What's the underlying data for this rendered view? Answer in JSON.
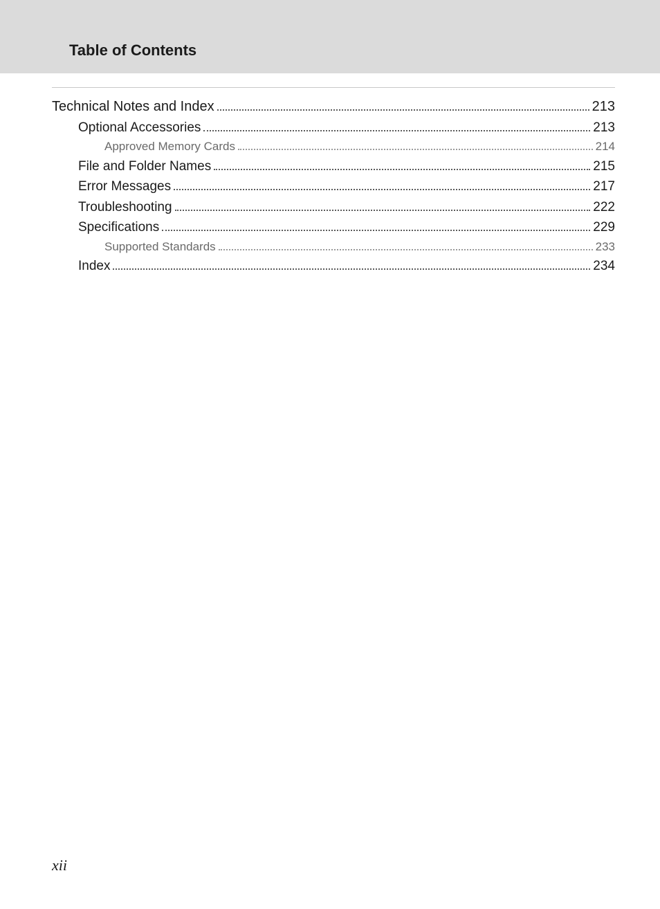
{
  "header": {
    "title": "Table of Contents"
  },
  "toc": {
    "entries": [
      {
        "level": 0,
        "label": "Technical Notes and Index",
        "page": "213"
      },
      {
        "level": 1,
        "label": "Optional Accessories",
        "page": "213"
      },
      {
        "level": 2,
        "label": "Approved Memory Cards",
        "page": "214"
      },
      {
        "level": 1,
        "label": "File and Folder Names",
        "page": "215"
      },
      {
        "level": 1,
        "label": "Error Messages",
        "page": "217"
      },
      {
        "level": 1,
        "label": "Troubleshooting",
        "page": "222"
      },
      {
        "level": 1,
        "label": "Specifications",
        "page": "229"
      },
      {
        "level": 2,
        "label": "Supported Standards",
        "page": "233"
      },
      {
        "level": 1,
        "label": "Index",
        "page": "234"
      }
    ]
  },
  "footer": {
    "page_number": "xii"
  },
  "colors": {
    "page_bg_top": "#dbdbdb",
    "page_bg_main": "#ffffff",
    "text_primary": "#1a1a1a",
    "text_secondary": "#6a6a6a",
    "dots_primary": "#5a5a5a",
    "dots_secondary": "#9a9a9a",
    "rule": "#c8c8c8"
  }
}
